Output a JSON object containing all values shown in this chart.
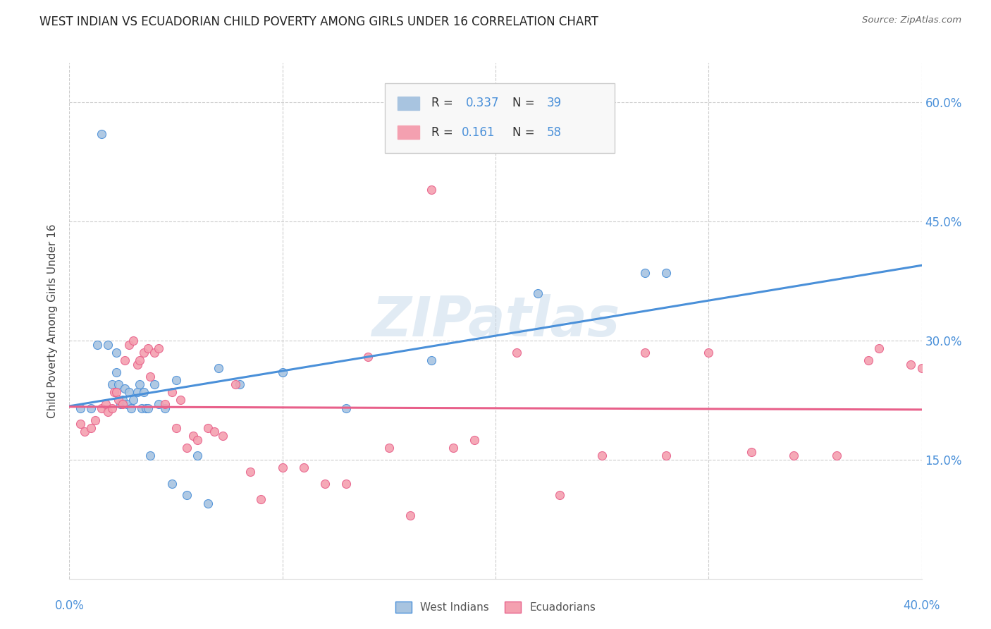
{
  "title": "WEST INDIAN VS ECUADORIAN CHILD POVERTY AMONG GIRLS UNDER 16 CORRELATION CHART",
  "source": "Source: ZipAtlas.com",
  "ylabel": "Child Poverty Among Girls Under 16",
  "xlim": [
    0.0,
    0.4
  ],
  "ylim": [
    0.0,
    0.65
  ],
  "yticks": [
    0.15,
    0.3,
    0.45,
    0.6
  ],
  "ytick_labels": [
    "15.0%",
    "30.0%",
    "45.0%",
    "60.0%"
  ],
  "xticks": [
    0.0,
    0.1,
    0.2,
    0.3,
    0.4
  ],
  "color_west_indian": "#a8c4e0",
  "color_ecuadorian": "#f4a0b0",
  "color_line_west_indian": "#4a90d9",
  "color_line_ecuadorian": "#e8608a",
  "watermark": "ZIPatlas",
  "west_indian_x": [
    0.005,
    0.01,
    0.013,
    0.015,
    0.018,
    0.02,
    0.022,
    0.022,
    0.023,
    0.024,
    0.025,
    0.026,
    0.027,
    0.028,
    0.029,
    0.03,
    0.032,
    0.033,
    0.034,
    0.035,
    0.036,
    0.037,
    0.038,
    0.04,
    0.042,
    0.045,
    0.048,
    0.05,
    0.055,
    0.06,
    0.065,
    0.07,
    0.08,
    0.1,
    0.13,
    0.17,
    0.22,
    0.27,
    0.28
  ],
  "west_indian_y": [
    0.215,
    0.215,
    0.295,
    0.56,
    0.295,
    0.245,
    0.285,
    0.26,
    0.245,
    0.22,
    0.225,
    0.24,
    0.22,
    0.235,
    0.215,
    0.225,
    0.235,
    0.245,
    0.215,
    0.235,
    0.215,
    0.215,
    0.155,
    0.245,
    0.22,
    0.215,
    0.12,
    0.25,
    0.105,
    0.155,
    0.095,
    0.265,
    0.245,
    0.26,
    0.215,
    0.275,
    0.36,
    0.385,
    0.385
  ],
  "ecuadorian_x": [
    0.005,
    0.007,
    0.01,
    0.012,
    0.015,
    0.017,
    0.018,
    0.02,
    0.021,
    0.022,
    0.023,
    0.025,
    0.026,
    0.028,
    0.03,
    0.032,
    0.033,
    0.035,
    0.037,
    0.038,
    0.04,
    0.042,
    0.045,
    0.048,
    0.05,
    0.052,
    0.055,
    0.058,
    0.06,
    0.065,
    0.068,
    0.072,
    0.078,
    0.085,
    0.09,
    0.1,
    0.11,
    0.12,
    0.13,
    0.14,
    0.15,
    0.16,
    0.17,
    0.18,
    0.19,
    0.21,
    0.23,
    0.25,
    0.27,
    0.28,
    0.3,
    0.32,
    0.34,
    0.36,
    0.375,
    0.38,
    0.395,
    0.4
  ],
  "ecuadorian_y": [
    0.195,
    0.185,
    0.19,
    0.2,
    0.215,
    0.22,
    0.21,
    0.215,
    0.235,
    0.235,
    0.225,
    0.22,
    0.275,
    0.295,
    0.3,
    0.27,
    0.275,
    0.285,
    0.29,
    0.255,
    0.285,
    0.29,
    0.22,
    0.235,
    0.19,
    0.225,
    0.165,
    0.18,
    0.175,
    0.19,
    0.185,
    0.18,
    0.245,
    0.135,
    0.1,
    0.14,
    0.14,
    0.12,
    0.12,
    0.28,
    0.165,
    0.08,
    0.49,
    0.165,
    0.175,
    0.285,
    0.105,
    0.155,
    0.285,
    0.155,
    0.285,
    0.16,
    0.155,
    0.155,
    0.275,
    0.29,
    0.27,
    0.265
  ]
}
